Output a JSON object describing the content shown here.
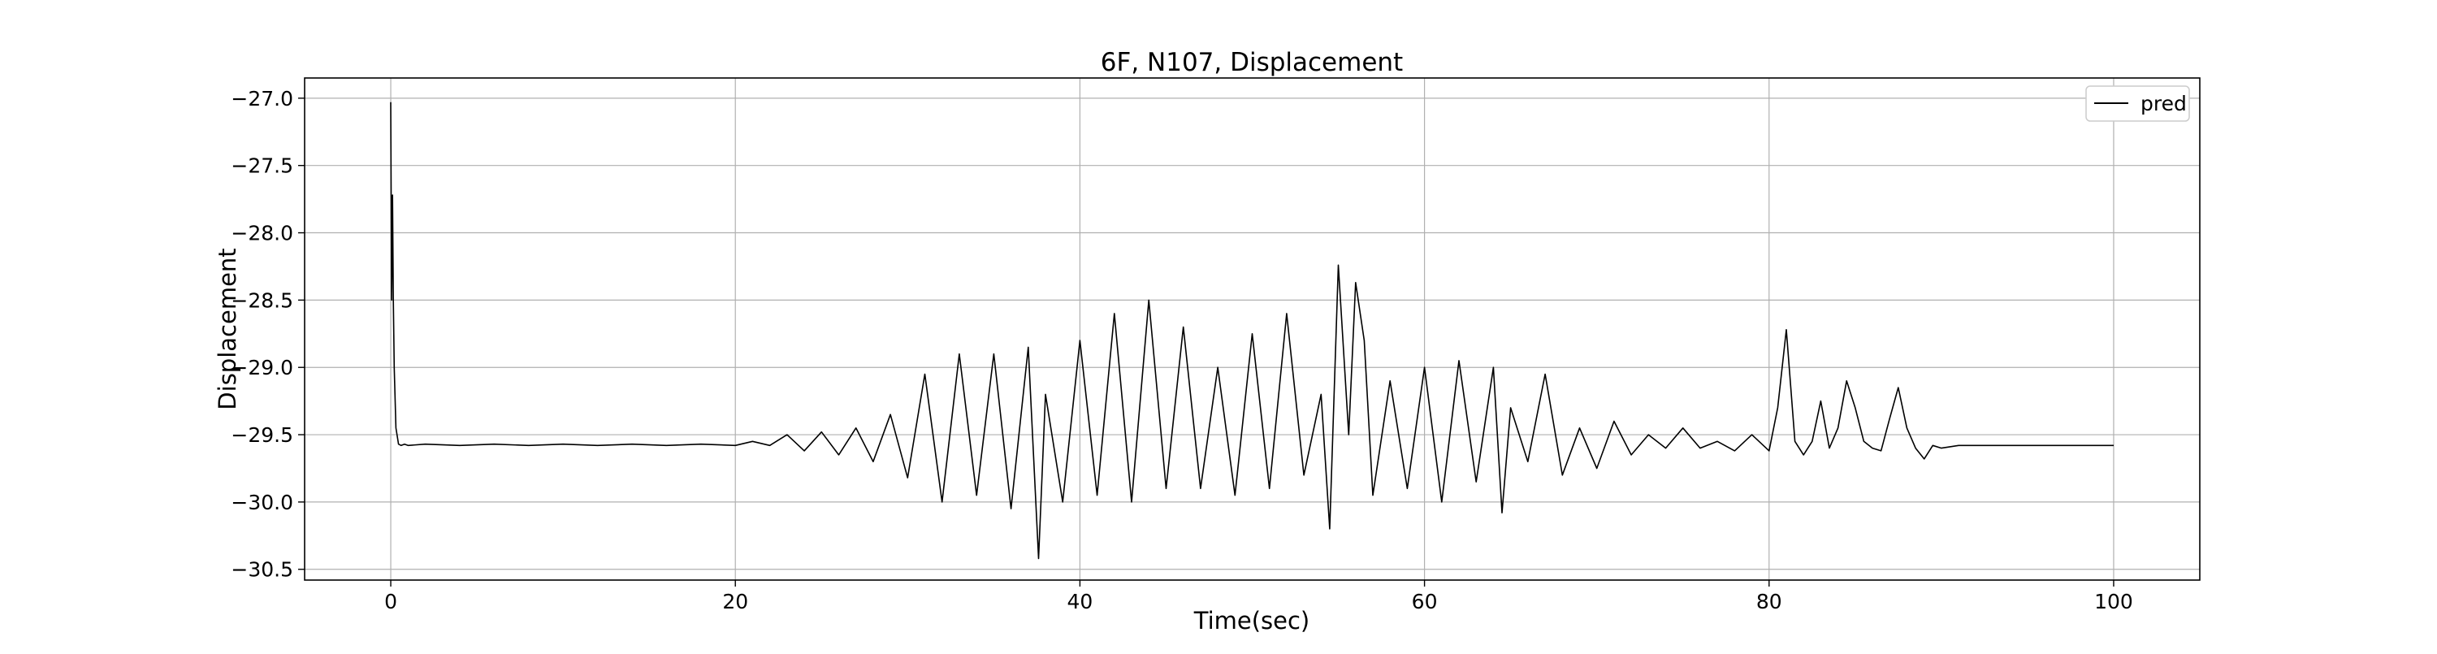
{
  "chart_data": {
    "type": "line",
    "title": "6F, N107, Displacement",
    "xlabel": "Time(sec)",
    "ylabel": "Displacement",
    "xlim": [
      -5,
      105
    ],
    "ylim": [
      -30.58,
      -26.85
    ],
    "xticks": [
      0,
      20,
      40,
      60,
      80,
      100
    ],
    "xtick_labels": [
      "0",
      "20",
      "40",
      "60",
      "80",
      "100"
    ],
    "yticks": [
      -27.0,
      -27.5,
      -28.0,
      -28.5,
      -29.0,
      -29.5,
      -30.0,
      -30.5
    ],
    "ytick_labels": [
      "−27.0",
      "−27.5",
      "−28.0",
      "−28.5",
      "−29.0",
      "−29.5",
      "−30.0",
      "−30.5"
    ],
    "grid": true,
    "legend_position": "upper-right",
    "line_color": "#000000",
    "series": [
      {
        "name": "pred",
        "x": [
          0,
          0.05,
          0.1,
          0.15,
          0.2,
          0.3,
          0.45,
          0.6,
          0.8,
          1.0,
          2,
          4,
          6,
          8,
          10,
          12,
          14,
          16,
          18,
          20,
          21,
          22,
          23,
          24,
          25,
          26,
          27,
          28,
          29,
          30,
          31,
          32,
          33,
          34,
          35,
          36,
          37,
          37.6,
          38,
          39,
          40,
          41,
          42,
          43,
          44,
          45,
          46,
          47,
          48,
          49,
          50,
          51,
          52,
          53,
          54,
          54.5,
          55,
          55.6,
          56,
          56.5,
          57,
          58,
          59,
          60,
          61,
          62,
          63,
          64,
          64.5,
          65,
          66,
          67,
          68,
          69,
          70,
          71,
          72,
          73,
          74,
          75,
          76,
          77,
          78,
          79,
          80,
          80.5,
          81,
          81.5,
          82,
          82.5,
          83,
          83.5,
          84,
          84.5,
          85,
          85.5,
          86,
          86.5,
          87,
          87.5,
          88,
          88.5,
          89,
          89.5,
          90,
          91,
          95,
          100
        ],
        "y": [
          -27.03,
          -28.5,
          -27.72,
          -28.5,
          -29.0,
          -29.45,
          -29.57,
          -29.58,
          -29.57,
          -29.58,
          -29.57,
          -29.58,
          -29.57,
          -29.58,
          -29.57,
          -29.58,
          -29.57,
          -29.58,
          -29.57,
          -29.58,
          -29.55,
          -29.58,
          -29.5,
          -29.62,
          -29.48,
          -29.65,
          -29.45,
          -29.7,
          -29.35,
          -29.82,
          -29.05,
          -30.0,
          -28.9,
          -29.95,
          -28.9,
          -30.05,
          -28.85,
          -30.42,
          -29.2,
          -30.0,
          -28.8,
          -29.95,
          -28.6,
          -30.0,
          -28.5,
          -29.9,
          -28.7,
          -29.9,
          -29.0,
          -29.95,
          -28.75,
          -29.9,
          -28.6,
          -29.8,
          -29.2,
          -30.2,
          -28.24,
          -29.5,
          -28.37,
          -28.8,
          -29.95,
          -29.1,
          -29.9,
          -29.0,
          -30.0,
          -28.95,
          -29.85,
          -29.0,
          -30.08,
          -29.3,
          -29.7,
          -29.05,
          -29.8,
          -29.45,
          -29.75,
          -29.4,
          -29.65,
          -29.5,
          -29.6,
          -29.45,
          -29.6,
          -29.55,
          -29.62,
          -29.5,
          -29.62,
          -29.3,
          -28.72,
          -29.55,
          -29.65,
          -29.55,
          -29.25,
          -29.6,
          -29.45,
          -29.1,
          -29.3,
          -29.55,
          -29.6,
          -29.62,
          -29.38,
          -29.15,
          -29.45,
          -29.6,
          -29.68,
          -29.58,
          -29.6,
          -29.58,
          -29.58,
          -29.58
        ]
      }
    ]
  }
}
